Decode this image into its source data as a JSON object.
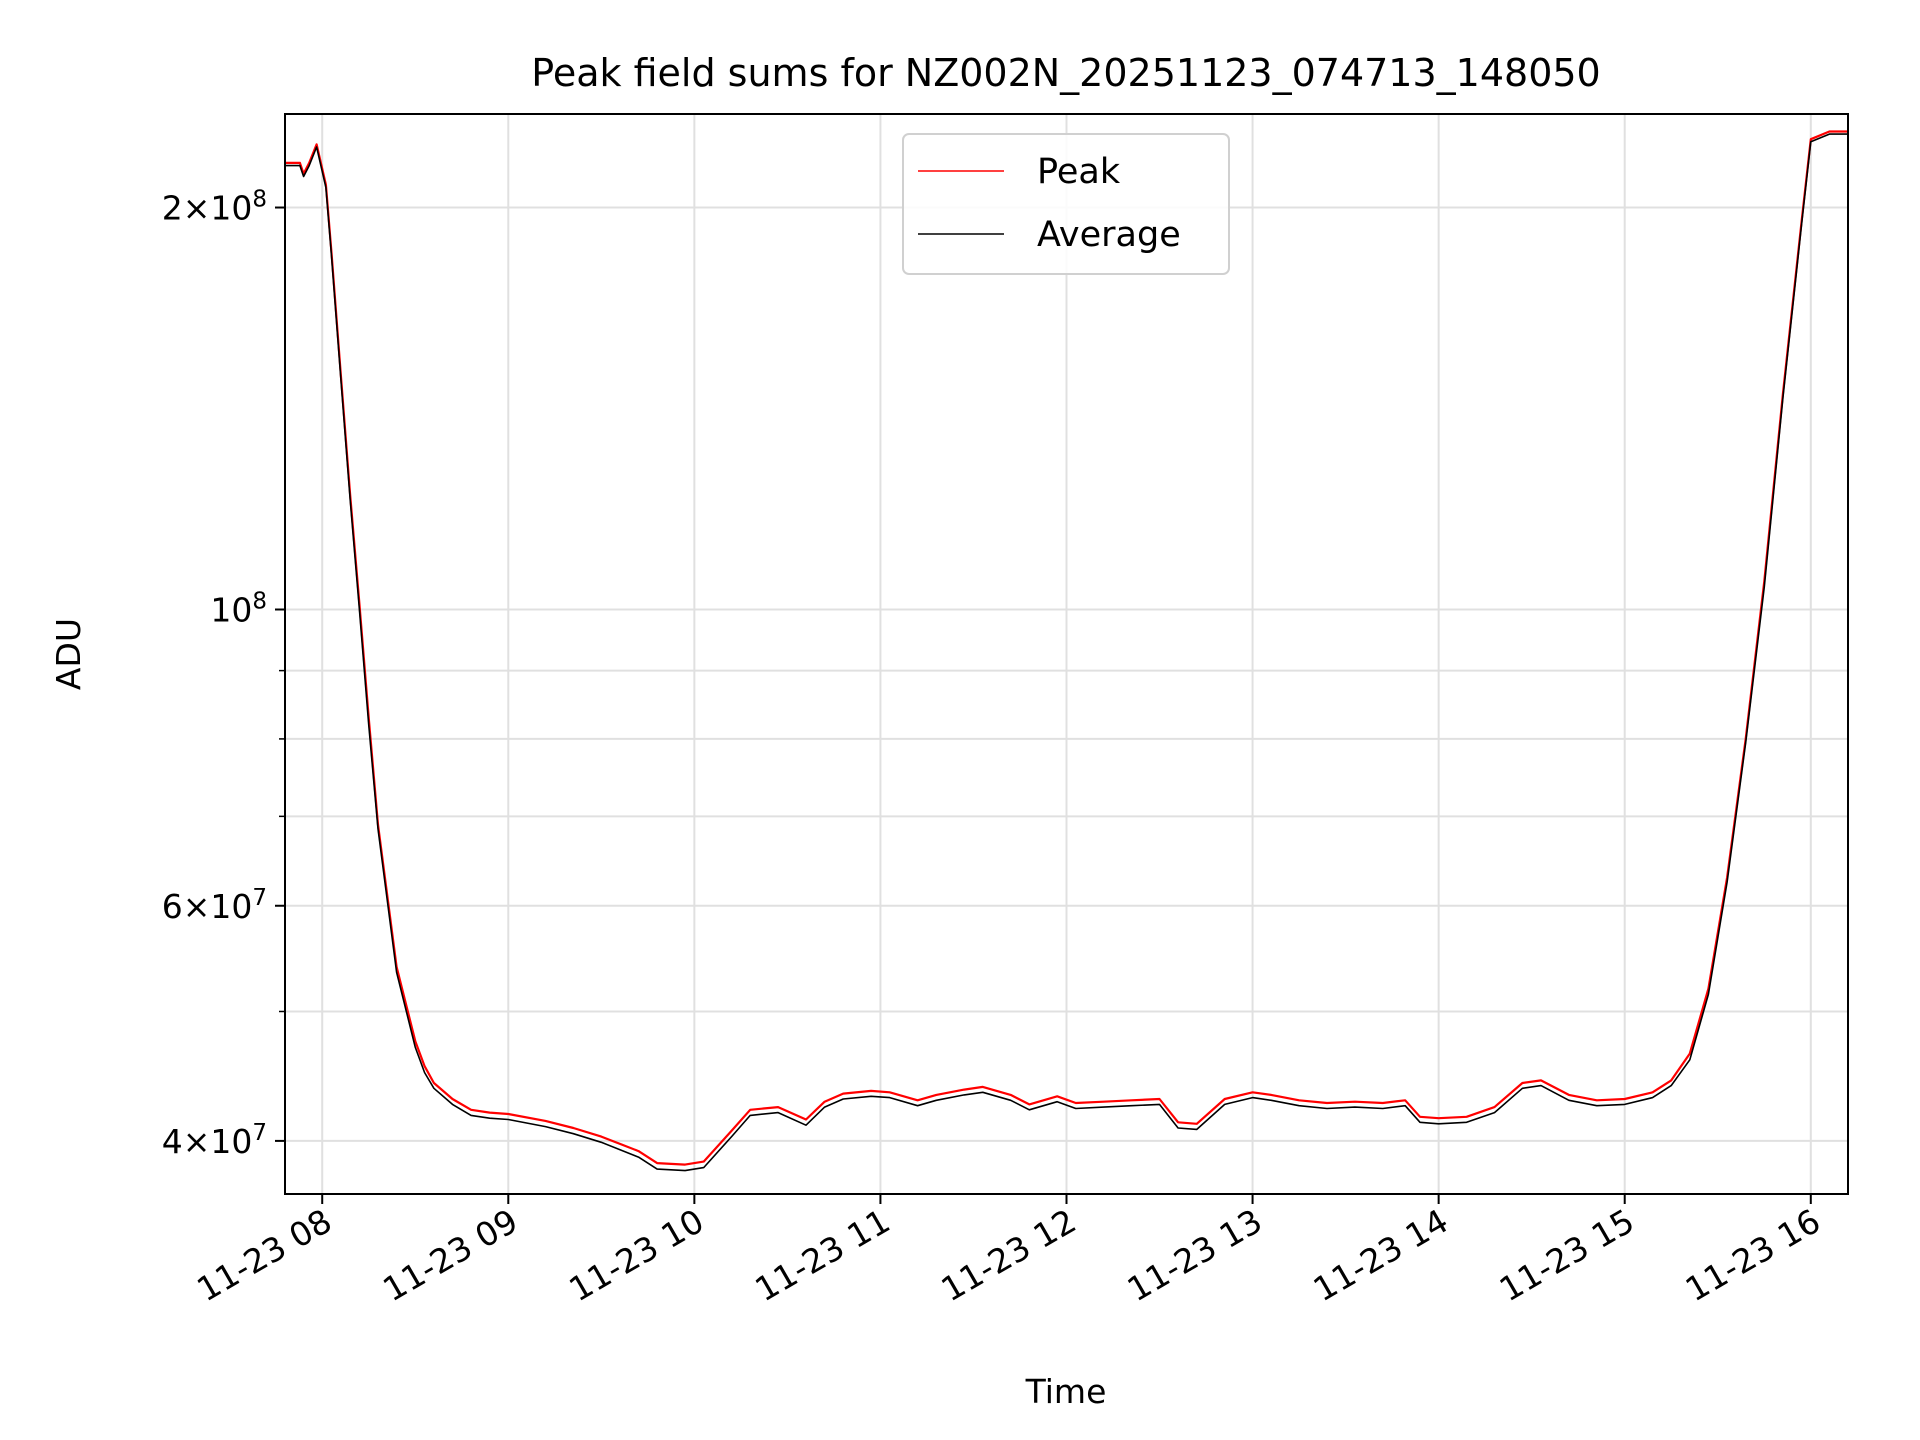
{
  "chart_data": {
    "type": "line",
    "title": "Peak field sums for NZ002N_20251123_074713_148050",
    "xlabel": "Time",
    "ylabel": "ADU",
    "xlim": [
      7.8,
      16.2
    ],
    "ylim": [
      36500000,
      235000000
    ],
    "yscale": "log",
    "grid": true,
    "legend_position": "upper center",
    "x_ticks": [
      {
        "value": 8,
        "label": "11-23 08"
      },
      {
        "value": 9,
        "label": "11-23 09"
      },
      {
        "value": 10,
        "label": "11-23 10"
      },
      {
        "value": 11,
        "label": "11-23 11"
      },
      {
        "value": 12,
        "label": "11-23 12"
      },
      {
        "value": 13,
        "label": "11-23 13"
      },
      {
        "value": 14,
        "label": "11-23 14"
      },
      {
        "value": 15,
        "label": "11-23 15"
      },
      {
        "value": 16,
        "label": "11-23 16"
      }
    ],
    "y_major_ticks": [
      {
        "value": 40000000,
        "mantissa": "4",
        "times": "×",
        "base": "10",
        "exp": "7"
      },
      {
        "value": 60000000,
        "mantissa": "6",
        "times": "×",
        "base": "10",
        "exp": "7"
      },
      {
        "value": 100000000,
        "mantissa": "",
        "times": "",
        "base": "10",
        "exp": "8"
      },
      {
        "value": 200000000,
        "mantissa": "2",
        "times": "×",
        "base": "10",
        "exp": "8"
      }
    ],
    "y_minor_ticks": [
      50000000,
      70000000,
      80000000,
      90000000
    ],
    "series": [
      {
        "name": "Peak",
        "color": "#ff0000",
        "x": [
          7.8,
          7.88,
          7.9,
          7.93,
          7.97,
          8.02,
          8.05,
          8.1,
          8.15,
          8.2,
          8.25,
          8.3,
          8.4,
          8.5,
          8.55,
          8.6,
          8.7,
          8.8,
          8.9,
          9.0,
          9.2,
          9.35,
          9.5,
          9.7,
          9.8,
          9.95,
          10.05,
          10.2,
          10.3,
          10.45,
          10.6,
          10.7,
          10.8,
          10.95,
          11.05,
          11.2,
          11.3,
          11.45,
          11.55,
          11.7,
          11.8,
          11.95,
          12.05,
          12.2,
          12.35,
          12.5,
          12.6,
          12.7,
          12.85,
          13.0,
          13.1,
          13.25,
          13.4,
          13.55,
          13.7,
          13.82,
          13.9,
          14.0,
          14.15,
          14.3,
          14.45,
          14.55,
          14.7,
          14.85,
          15.0,
          15.15,
          15.25,
          15.35,
          15.45,
          15.55,
          15.65,
          15.75,
          15.85,
          15.95,
          16.0,
          16.1,
          16.2
        ],
        "y": [
          216000000,
          216000000,
          212000000,
          216000000,
          223000000,
          208000000,
          185000000,
          150000000,
          122000000,
          101000000,
          83000000,
          69000000,
          54000000,
          47500000,
          45500000,
          44200000,
          43000000,
          42200000,
          42000000,
          41900000,
          41400000,
          40900000,
          40300000,
          39300000,
          38500000,
          38400000,
          38600000,
          40700000,
          42200000,
          42400000,
          41500000,
          42800000,
          43400000,
          43600000,
          43500000,
          42900000,
          43300000,
          43700000,
          43900000,
          43300000,
          42600000,
          43200000,
          42700000,
          42800000,
          42900000,
          43000000,
          41300000,
          41200000,
          43000000,
          43500000,
          43300000,
          42900000,
          42700000,
          42800000,
          42700000,
          42900000,
          41700000,
          41600000,
          41700000,
          42400000,
          44200000,
          44400000,
          43300000,
          42900000,
          43000000,
          43500000,
          44400000,
          46500000,
          52000000,
          63000000,
          80000000,
          105000000,
          145000000,
          195000000,
          225000000,
          228000000,
          228000000
        ]
      },
      {
        "name": "Average",
        "color": "#000000",
        "x": [
          7.8,
          7.88,
          7.9,
          7.93,
          7.97,
          8.02,
          8.05,
          8.1,
          8.15,
          8.2,
          8.25,
          8.3,
          8.4,
          8.5,
          8.55,
          8.6,
          8.7,
          8.8,
          8.9,
          9.0,
          9.2,
          9.35,
          9.5,
          9.7,
          9.8,
          9.95,
          10.05,
          10.2,
          10.3,
          10.45,
          10.6,
          10.7,
          10.8,
          10.95,
          11.05,
          11.2,
          11.3,
          11.45,
          11.55,
          11.7,
          11.8,
          11.95,
          12.05,
          12.2,
          12.35,
          12.5,
          12.6,
          12.7,
          12.85,
          13.0,
          13.1,
          13.25,
          13.4,
          13.55,
          13.7,
          13.82,
          13.9,
          14.0,
          14.15,
          14.3,
          14.45,
          14.55,
          14.7,
          14.85,
          15.0,
          15.15,
          15.25,
          15.35,
          15.45,
          15.55,
          15.65,
          15.75,
          15.85,
          15.95,
          16.0,
          16.1,
          16.2
        ],
        "y": [
          215000000,
          215000000,
          211000000,
          215000000,
          222000000,
          207000000,
          184000000,
          149000000,
          121000000,
          100000000,
          82000000,
          68500000,
          53500000,
          47000000,
          45000000,
          43800000,
          42600000,
          41800000,
          41600000,
          41500000,
          41000000,
          40500000,
          39900000,
          38900000,
          38100000,
          38000000,
          38200000,
          40300000,
          41800000,
          42000000,
          41100000,
          42400000,
          43000000,
          43200000,
          43100000,
          42500000,
          42900000,
          43300000,
          43500000,
          42900000,
          42200000,
          42800000,
          42300000,
          42400000,
          42500000,
          42600000,
          40900000,
          40800000,
          42600000,
          43100000,
          42900000,
          42500000,
          42300000,
          42400000,
          42300000,
          42500000,
          41300000,
          41200000,
          41300000,
          42000000,
          43800000,
          44000000,
          42900000,
          42500000,
          42600000,
          43100000,
          44000000,
          46000000,
          51500000,
          62500000,
          79500000,
          104000000,
          144000000,
          194000000,
          224000000,
          227000000,
          227000000
        ]
      }
    ]
  }
}
